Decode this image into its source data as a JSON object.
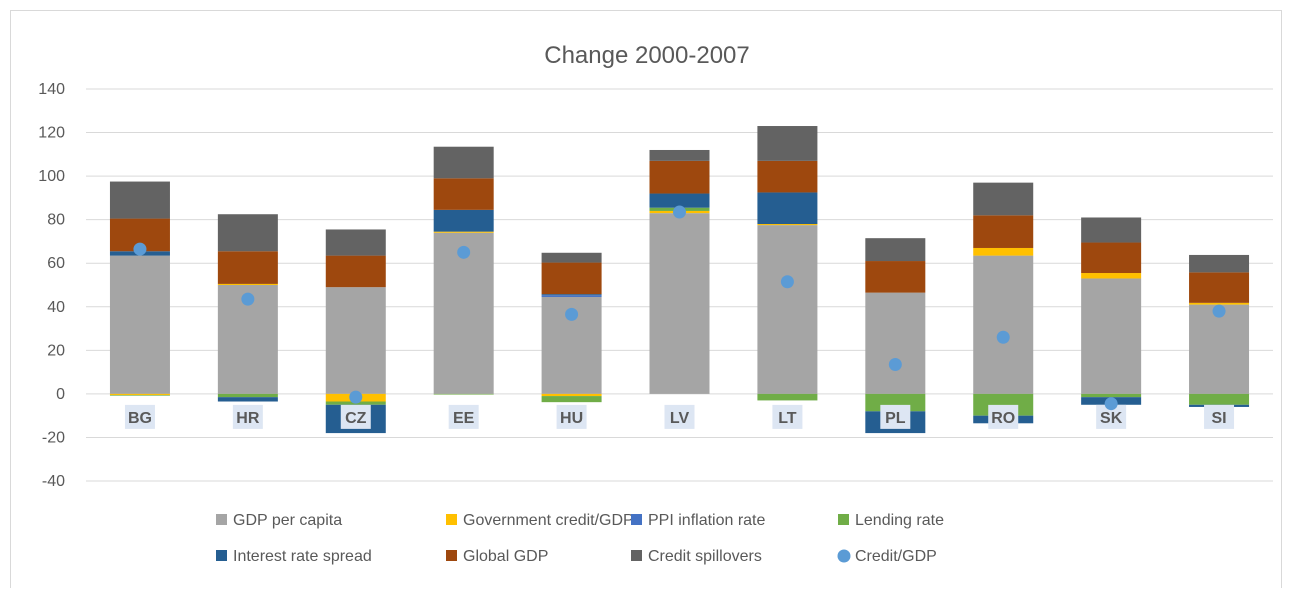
{
  "chart_data": {
    "type": "bar",
    "stacked": true,
    "title": "Change 2000-2007",
    "xlabel": "",
    "ylabel": "",
    "ylim": [
      -40,
      140
    ],
    "yticks": [
      -40,
      -20,
      0,
      20,
      40,
      60,
      80,
      100,
      120,
      140
    ],
    "grid": true,
    "legend_position": "bottom",
    "categories": [
      "BG",
      "HR",
      "CZ",
      "EE",
      "HU",
      "LV",
      "LT",
      "PL",
      "RO",
      "SK",
      "SI"
    ],
    "series": [
      {
        "name": "GDP per capita",
        "color": "#a5a5a5",
        "kind": "bar",
        "values": [
          63.5,
          50,
          49,
          74,
          44.5,
          83,
          77.5,
          46.5,
          63.5,
          53,
          41
        ]
      },
      {
        "name": "Government credit/GDP",
        "color": "#ffc000",
        "kind": "bar",
        "values": [
          -0.5,
          0.5,
          -3.5,
          0.5,
          -1,
          1,
          0.5,
          0,
          3.5,
          2.5,
          0.8
        ]
      },
      {
        "name": "PPI inflation rate",
        "color": "#4472c4",
        "kind": "bar",
        "values": [
          0,
          0,
          0,
          0,
          0.8,
          0,
          0,
          0,
          0,
          0,
          0
        ]
      },
      {
        "name": "Lending rate",
        "color": "#70ad47",
        "kind": "bar",
        "values": [
          -0.3,
          -1.5,
          -1.5,
          -0.3,
          -2.8,
          1.5,
          -3,
          -8,
          -10,
          -1.5,
          -5
        ]
      },
      {
        "name": "Interest rate spread",
        "color": "#255e91",
        "kind": "bar",
        "values": [
          2,
          -2,
          -13,
          10,
          0.5,
          6.5,
          14.5,
          -10,
          -3.5,
          -3.5,
          -1
        ]
      },
      {
        "name": "Global GDP",
        "color": "#9e480e",
        "kind": "bar",
        "values": [
          15,
          15,
          14.5,
          14.5,
          14.5,
          15,
          14.5,
          14.5,
          15,
          14,
          14
        ]
      },
      {
        "name": "Credit spillovers",
        "color": "#636363",
        "kind": "bar",
        "values": [
          17,
          17,
          12,
          14.5,
          4.5,
          5,
          16,
          10.5,
          15,
          11.5,
          8
        ]
      },
      {
        "name": "Credit/GDP",
        "color": "#5b9bd5",
        "kind": "scatter",
        "values": [
          66.5,
          43.5,
          -1.5,
          65,
          36.5,
          83.5,
          51.5,
          13.5,
          26,
          -4.5,
          38
        ]
      }
    ]
  }
}
